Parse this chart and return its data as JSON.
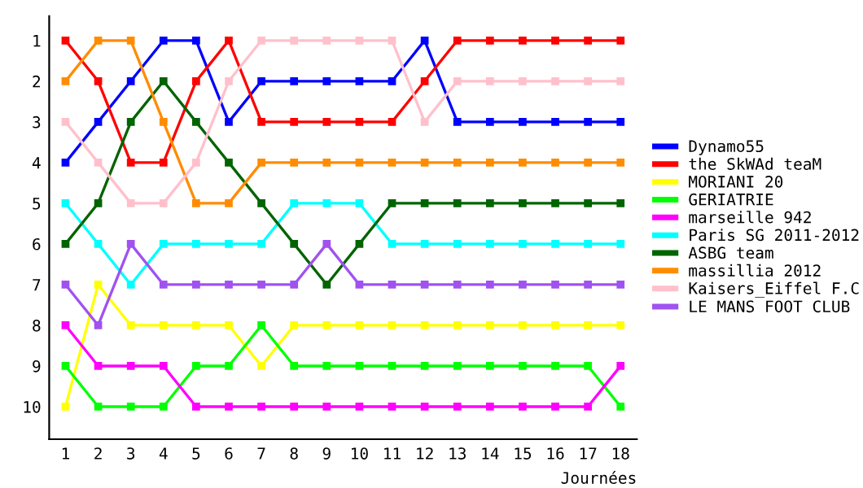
{
  "chart_data": {
    "type": "line",
    "xlabel": "Journées",
    "x": [
      1,
      2,
      3,
      4,
      5,
      6,
      7,
      8,
      9,
      10,
      11,
      12,
      13,
      14,
      15,
      16,
      17,
      18
    ],
    "xlim": [
      0.5,
      18.5
    ],
    "xticks": [
      1,
      2,
      3,
      4,
      5,
      6,
      7,
      8,
      9,
      10,
      11,
      12,
      13,
      14,
      15,
      16,
      17,
      18
    ],
    "ylim": [
      10.8,
      0.4
    ],
    "yticks": [
      1,
      2,
      3,
      4,
      5,
      6,
      7,
      8,
      9,
      10
    ],
    "grid": false,
    "legend": "right",
    "marker": "square",
    "line_style": "solid",
    "series": [
      {
        "name": "Dynamo55",
        "color": "#0000ff",
        "values": [
          4,
          3,
          2,
          1,
          1,
          3,
          2,
          2,
          2,
          2,
          2,
          1,
          3,
          3,
          3,
          3,
          3,
          3
        ]
      },
      {
        "name": "the SkWAd teaM",
        "color": "#ff0000",
        "values": [
          1,
          2,
          4,
          4,
          2,
          1,
          3,
          3,
          3,
          3,
          3,
          2,
          1,
          1,
          1,
          1,
          1,
          1
        ]
      },
      {
        "name": "MORIANI 20",
        "color": "#ffff00",
        "values": [
          10,
          7,
          8,
          8,
          8,
          8,
          9,
          8,
          8,
          8,
          8,
          8,
          8,
          8,
          8,
          8,
          8,
          8
        ]
      },
      {
        "name": "GERIATRIE",
        "color": "#00ff00",
        "values": [
          9,
          10,
          10,
          10,
          9,
          9,
          8,
          9,
          9,
          9,
          9,
          9,
          9,
          9,
          9,
          9,
          9,
          10
        ]
      },
      {
        "name": "marseille 942",
        "color": "#ff00ff",
        "values": [
          8,
          9,
          9,
          9,
          10,
          10,
          10,
          10,
          10,
          10,
          10,
          10,
          10,
          10,
          10,
          10,
          10,
          9
        ]
      },
      {
        "name": "Paris SG 2011-2012",
        "color": "#00ffff",
        "values": [
          5,
          6,
          7,
          6,
          6,
          6,
          6,
          5,
          5,
          5,
          6,
          6,
          6,
          6,
          6,
          6,
          6,
          6
        ]
      },
      {
        "name": "ASBG team",
        "color": "#006400",
        "values": [
          6,
          5,
          3,
          2,
          3,
          4,
          5,
          6,
          7,
          6,
          5,
          5,
          5,
          5,
          5,
          5,
          5,
          5
        ]
      },
      {
        "name": "massillia 2012",
        "color": "#ff8c00",
        "values": [
          2,
          1,
          1,
          3,
          5,
          5,
          4,
          4,
          4,
          4,
          4,
          4,
          4,
          4,
          4,
          4,
          4,
          4
        ]
      },
      {
        "name": "Kaisers_Eiffel F.C",
        "color": "#ffc0cb",
        "values": [
          3,
          4,
          5,
          5,
          4,
          2,
          1,
          1,
          1,
          1,
          1,
          3,
          2,
          2,
          2,
          2,
          2,
          2
        ]
      },
      {
        "name": "LE MANS FOOT CLUB",
        "color": "#a052f0",
        "values": [
          7,
          8,
          6,
          7,
          7,
          7,
          7,
          7,
          6,
          7,
          7,
          7,
          7,
          7,
          7,
          7,
          7,
          7
        ]
      }
    ]
  }
}
